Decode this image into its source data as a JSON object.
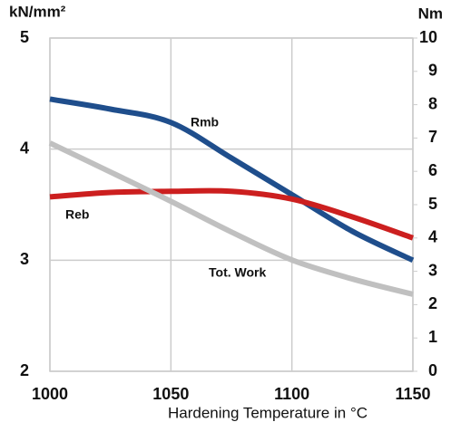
{
  "chart_data": {
    "type": "line",
    "y_label": "kN/mm²",
    "y2_label": "Nm",
    "x_label": "Hardening Temperature in °C",
    "x": [
      1000,
      1025,
      1050,
      1075,
      1100,
      1125,
      1150
    ],
    "xlim": [
      1000,
      1150
    ],
    "xticks": [
      1000,
      1050,
      1100,
      1150
    ],
    "ylim": [
      2,
      5
    ],
    "yticks": [
      2,
      3,
      4,
      5
    ],
    "y2lim": [
      0,
      10
    ],
    "y2ticks": [
      0,
      1,
      2,
      3,
      4,
      5,
      6,
      7,
      8,
      9,
      10
    ],
    "grid": true,
    "series": [
      {
        "name": "Rmb",
        "color": "#1f4e8c",
        "values": [
          4.45,
          4.36,
          4.24,
          3.92,
          3.59,
          3.26,
          3.0
        ]
      },
      {
        "name": "Reb",
        "color": "#cc1f1f",
        "values": [
          3.57,
          3.61,
          3.62,
          3.62,
          3.55,
          3.39,
          3.2
        ]
      },
      {
        "name": "Tot. Work",
        "color": "#c0c0c0",
        "axis": "y2",
        "values": [
          6.85,
          5.98,
          5.1,
          4.18,
          3.34,
          2.77,
          2.31
        ]
      }
    ]
  }
}
